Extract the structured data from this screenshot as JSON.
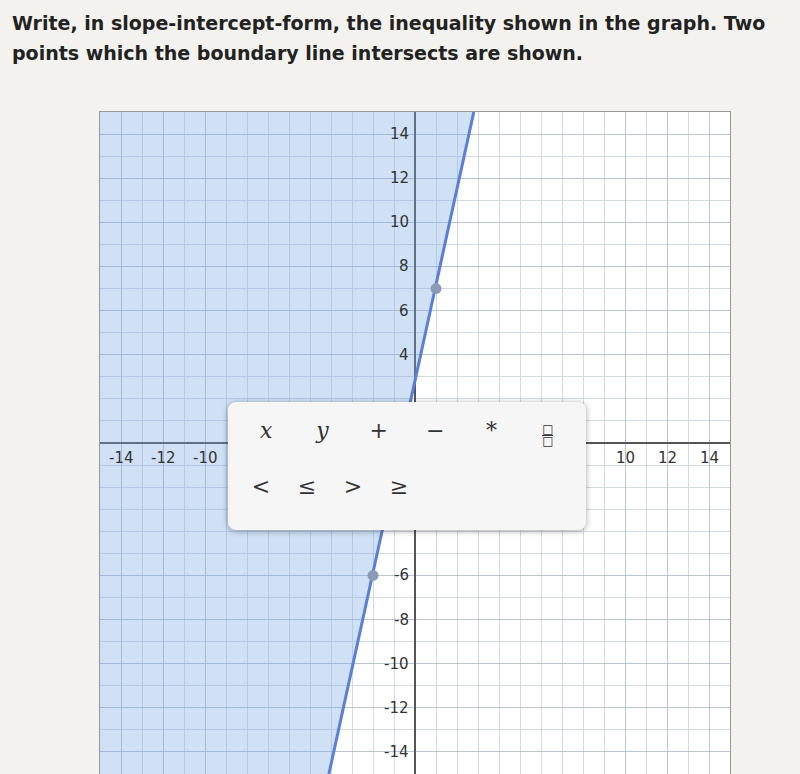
{
  "title": "Write, in slope-intercept-form, the inequality shown in the graph. Two points which the boundary line intersects are shown.",
  "chart_data": {
    "type": "inequality",
    "points": {
      "x": [
        1,
        -2
      ],
      "y": [
        7,
        -6
      ]
    },
    "boundary": {
      "x": [
        -4.1,
        2.8
      ],
      "y": [
        -15,
        15
      ]
    },
    "color": "#5b7fd6",
    "line_style": "solid",
    "xlim": [
      -15,
      15
    ],
    "ylim": [
      -15,
      15
    ],
    "xticks": [
      -14,
      -12,
      -10,
      10,
      12,
      14
    ],
    "yticks": [
      -14,
      -12,
      -10,
      -8,
      -6,
      4,
      6,
      8,
      10,
      12,
      14
    ],
    "grid": true
  },
  "keypad": {
    "rows": [
      [
        "x",
        "y",
        "+",
        "−",
        "*",
        [
          "□",
          "□"
        ]
      ],
      [
        "<",
        "≤",
        ">",
        "≥"
      ]
    ]
  }
}
